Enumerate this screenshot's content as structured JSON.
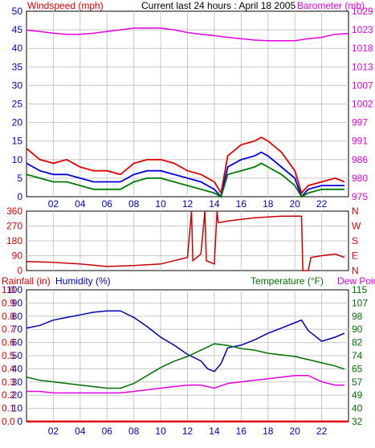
{
  "header": {
    "left": "Windspeed (mph)",
    "center": "Current last 24 hours : April 18 2005",
    "right": "Barometer (mb)"
  },
  "colors": {
    "gust": "#e00000",
    "wind": "#0000e0",
    "wind_low": "#007a00",
    "barometer": "#e000e0",
    "direction": "#c80000",
    "humidity": "#0000b0",
    "temperature": "#007000",
    "dewpoint": "#e000e0",
    "rainfall": "#e00000",
    "grid": "#c8c8c8"
  },
  "chart_data": [
    {
      "type": "line",
      "xlabel": "",
      "x_ticks": [
        "02",
        "04",
        "06",
        "08",
        "10",
        "12",
        "14",
        "16",
        "18",
        "20",
        "22"
      ],
      "x_range": [
        0,
        24
      ],
      "y_label_left": "Windspeed (mph)",
      "y_ticks_left": [
        "0",
        "5",
        "10",
        "15",
        "20",
        "25",
        "30",
        "35",
        "40",
        "45",
        "50"
      ],
      "ylim_left": [
        0,
        50
      ],
      "y_label_right": "Barometer (mb)",
      "y_ticks_right": [
        "975",
        "980",
        "986",
        "991",
        "997",
        "1002",
        "1007",
        "1013",
        "1018",
        "1023",
        "1029"
      ],
      "ylim_right": [
        975,
        1029
      ],
      "series": [
        {
          "key": "barometer",
          "axis": "right",
          "x": [
            0,
            1,
            2,
            3,
            4,
            5,
            6,
            7,
            8,
            9,
            10,
            11,
            12,
            13,
            14,
            15,
            16,
            17,
            18,
            19,
            20,
            21,
            22,
            23,
            24
          ],
          "values": [
            1023.5,
            1023.1,
            1022.6,
            1022.3,
            1022.3,
            1022.6,
            1023.1,
            1023.6,
            1024.1,
            1024.1,
            1024.1,
            1023.6,
            1022.8,
            1022.3,
            1021.9,
            1021.4,
            1021.0,
            1020.6,
            1020.4,
            1020.4,
            1020.4,
            1021.0,
            1021.4,
            1022.3,
            1022.5
          ]
        },
        {
          "key": "gust",
          "axis": "left",
          "x": [
            0,
            1,
            2,
            3,
            4,
            5,
            6,
            7,
            8,
            9,
            10,
            11,
            12,
            13,
            14,
            14.5,
            15,
            16,
            17,
            17.5,
            18,
            19,
            20,
            20.5,
            21,
            22,
            23,
            23.7
          ],
          "values": [
            13,
            10,
            9,
            10,
            8,
            7,
            7,
            6,
            9,
            10,
            10,
            9,
            7,
            6,
            4,
            1,
            11,
            14,
            15,
            16,
            15,
            12,
            7,
            1,
            3,
            4,
            5,
            4
          ]
        },
        {
          "key": "wind",
          "axis": "left",
          "x": [
            0,
            1,
            2,
            3,
            4,
            5,
            6,
            7,
            8,
            9,
            10,
            11,
            12,
            13,
            14,
            14.5,
            15,
            16,
            17,
            17.5,
            18,
            19,
            20,
            20.5,
            21,
            22,
            23,
            23.7
          ],
          "values": [
            9,
            7,
            6,
            6,
            5,
            4,
            4,
            4,
            6,
            7,
            7,
            6,
            5,
            4,
            2,
            0,
            8,
            10,
            11,
            12,
            11,
            8,
            5,
            0,
            2,
            3,
            3,
            3
          ]
        },
        {
          "key": "wind_low",
          "axis": "left",
          "x": [
            0,
            1,
            2,
            3,
            4,
            5,
            6,
            7,
            8,
            9,
            10,
            11,
            12,
            13,
            14,
            14.5,
            15,
            16,
            17,
            17.5,
            18,
            19,
            20,
            20.5,
            21,
            22,
            23,
            23.7
          ],
          "values": [
            6,
            5,
            4,
            4,
            3,
            2,
            2,
            2,
            4,
            5,
            5,
            4,
            3,
            2,
            1,
            0,
            6,
            7,
            8,
            9,
            8,
            6,
            3,
            0,
            1,
            2,
            2,
            2
          ]
        }
      ]
    },
    {
      "type": "line",
      "xlabel": "",
      "x_range": [
        0,
        24
      ],
      "y_ticks_left": [
        "0",
        "90",
        "180",
        "270",
        "360"
      ],
      "ylim_left": [
        0,
        360
      ],
      "y_ticks_right": [
        "N",
        "E",
        "S",
        "W",
        "N"
      ],
      "series": [
        {
          "key": "direction",
          "x": [
            0,
            2,
            4,
            6,
            8,
            10,
            11,
            12,
            12.3,
            12.4,
            13,
            13.3,
            13.4,
            14,
            14.2,
            14.3,
            15,
            17,
            19,
            20.5,
            20.6,
            21,
            21.2,
            22,
            23,
            23.7
          ],
          "values": [
            55,
            50,
            40,
            25,
            30,
            40,
            60,
            80,
            360,
            60,
            100,
            360,
            60,
            40,
            360,
            290,
            300,
            320,
            330,
            330,
            0,
            0,
            80,
            90,
            100,
            80
          ]
        }
      ]
    },
    {
      "type": "line",
      "xlabel": "",
      "x_ticks": [
        "02",
        "04",
        "06",
        "08",
        "10",
        "12",
        "14",
        "16",
        "18",
        "20",
        "22"
      ],
      "x_range": [
        0,
        24
      ],
      "legend": [
        "Rainfall (in)",
        "Humidity (%)",
        "Temperature (°F)",
        "Dew Point"
      ],
      "y_ticks_left_rain": [
        "0.0",
        "0.1",
        "0.2",
        "0.3",
        "0.4",
        "0.5",
        "0.6",
        "0.7",
        "0.8",
        "0.9",
        "1.0"
      ],
      "ylim_left_rain": [
        0,
        1
      ],
      "y_ticks_left_humidity": [
        "0",
        "10",
        "20",
        "30",
        "40",
        "50",
        "60",
        "70",
        "80",
        "90",
        "100"
      ],
      "ylim_left_humidity": [
        0,
        100
      ],
      "y_ticks_right": [
        "32",
        "40",
        "49",
        "57",
        "65",
        "74",
        "82",
        "90",
        "98",
        "107",
        "115"
      ],
      "ylim_right": [
        32,
        115
      ],
      "series": [
        {
          "key": "humidity",
          "axis": "left_humidity",
          "x": [
            0,
            1,
            2,
            3,
            4,
            5,
            6,
            7,
            8,
            9,
            10,
            11,
            12,
            13,
            13.5,
            14,
            14.5,
            15,
            16,
            17,
            18,
            19,
            20,
            20.5,
            21,
            22,
            23,
            23.7
          ],
          "values": [
            71,
            73,
            77,
            79,
            81,
            83,
            84,
            84,
            79,
            72,
            64,
            58,
            51,
            46,
            40,
            38,
            44,
            56,
            58,
            62,
            67,
            71,
            75,
            77,
            69,
            61,
            64,
            67
          ]
        },
        {
          "key": "temperature",
          "axis": "right",
          "x": [
            0,
            1,
            2,
            3,
            4,
            5,
            6,
            7,
            8,
            9,
            10,
            11,
            12,
            13,
            14,
            15,
            16,
            17,
            18,
            19,
            20,
            21,
            22,
            23,
            23.7
          ],
          "values": [
            60,
            58,
            57,
            56,
            55,
            54,
            53,
            53,
            56,
            61,
            66,
            70,
            73,
            77,
            81,
            80,
            78,
            77,
            75,
            74,
            73,
            71,
            69,
            67,
            65
          ]
        },
        {
          "key": "dewpoint",
          "axis": "right",
          "x": [
            0,
            1,
            2,
            3,
            4,
            5,
            6,
            7,
            8,
            9,
            10,
            11,
            12,
            13,
            14,
            15,
            16,
            17,
            18,
            19,
            20,
            21,
            22,
            23,
            23.7
          ],
          "values": [
            51,
            51,
            50,
            50,
            50,
            50,
            50,
            50,
            51,
            52,
            53,
            54,
            55,
            55,
            53,
            56,
            57,
            58,
            59,
            60,
            61,
            61,
            57,
            55,
            55
          ]
        },
        {
          "key": "rainfall",
          "axis": "left_rain",
          "x": [
            0,
            24
          ],
          "values": [
            0.0,
            0.0
          ]
        }
      ]
    }
  ]
}
